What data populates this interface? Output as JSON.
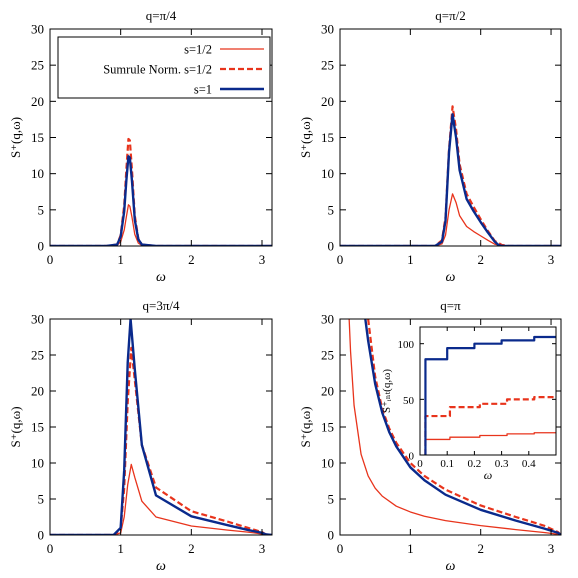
{
  "chart_data": [
    {
      "type": "line",
      "title": "q=π/4",
      "xlabel": "ω",
      "ylabel": "S⁺(q,ω)",
      "xlim": [
        0,
        3.14159
      ],
      "ylim": [
        0,
        30
      ],
      "xticks": [
        "0",
        "1",
        "2",
        "3"
      ],
      "xtick_values": [
        0,
        1,
        2,
        3
      ],
      "yticks": [
        "0",
        "5",
        "10",
        "15",
        "20",
        "25",
        "30"
      ],
      "ytick_values": [
        0,
        5,
        10,
        15,
        20,
        25,
        30
      ],
      "legend": {
        "placement": "top-right",
        "entries": [
          "s=1/2",
          "Sumrule Norm. s=1/2",
          "s=1"
        ]
      },
      "series": [
        {
          "name": "s=1/2",
          "color": "#e8341c",
          "dash": "solid",
          "x": [
            0,
            0.8,
            0.95,
            1.0,
            1.05,
            1.08,
            1.11,
            1.13,
            1.16,
            1.2,
            1.25,
            1.3,
            1.5,
            2.0,
            3.14
          ],
          "y": [
            0,
            0,
            0.1,
            0.6,
            2.2,
            4.0,
            5.7,
            5.5,
            4.0,
            1.6,
            0.4,
            0.08,
            0,
            0,
            0
          ]
        },
        {
          "name": "Sumrule Norm. s=1/2",
          "color": "#e8341c",
          "dash": "dashed",
          "x": [
            0,
            0.8,
            0.95,
            1.0,
            1.05,
            1.08,
            1.11,
            1.13,
            1.16,
            1.2,
            1.25,
            1.3,
            1.5,
            2.0,
            3.14
          ],
          "y": [
            0,
            0,
            0.2,
            1.5,
            5.6,
            10.5,
            14.8,
            14.6,
            10.5,
            4.2,
            1.0,
            0.2,
            0,
            0,
            0
          ]
        },
        {
          "name": "s=1",
          "color": "#0a2a8c",
          "dash": "solid",
          "x": [
            0,
            0.8,
            0.95,
            1.0,
            1.05,
            1.08,
            1.11,
            1.13,
            1.16,
            1.2,
            1.25,
            1.3,
            1.5,
            2.0,
            3.14
          ],
          "y": [
            0,
            0,
            0.2,
            1.3,
            4.8,
            9.0,
            12.4,
            12.2,
            9.0,
            3.6,
            0.9,
            0.2,
            0,
            0,
            0
          ]
        }
      ]
    },
    {
      "type": "line",
      "title": "q=π/2",
      "xlabel": "ω",
      "ylabel": "S⁺(q,ω)",
      "xlim": [
        0,
        3.14159
      ],
      "ylim": [
        0,
        30
      ],
      "xticks": [
        "0",
        "1",
        "2",
        "3"
      ],
      "xtick_values": [
        0,
        1,
        2,
        3
      ],
      "yticks": [
        "0",
        "5",
        "10",
        "15",
        "20",
        "25",
        "30"
      ],
      "ytick_values": [
        0,
        5,
        10,
        15,
        20,
        25,
        30
      ],
      "series": [
        {
          "name": "s=1/2",
          "color": "#e8341c",
          "dash": "solid",
          "x": [
            0,
            1.35,
            1.45,
            1.5,
            1.55,
            1.6,
            1.65,
            1.7,
            1.8,
            1.9,
            2.0,
            2.1,
            2.2,
            2.3,
            2.4,
            3.14
          ],
          "y": [
            0,
            0,
            0.3,
            1.5,
            5.0,
            7.2,
            6.0,
            4.2,
            2.7,
            2.0,
            1.4,
            0.8,
            0.25,
            0.05,
            0,
            0
          ]
        },
        {
          "name": "Sumrule Norm. s=1/2",
          "color": "#e8341c",
          "dash": "dashed",
          "x": [
            0,
            1.35,
            1.45,
            1.5,
            1.55,
            1.6,
            1.65,
            1.7,
            1.8,
            1.9,
            2.0,
            2.1,
            2.2,
            2.3,
            2.4,
            3.14
          ],
          "y": [
            0,
            0,
            0.8,
            4.0,
            13.4,
            19.3,
            16.1,
            11.3,
            7.2,
            5.4,
            3.7,
            2.1,
            0.7,
            0.15,
            0,
            0
          ]
        },
        {
          "name": "s=1",
          "color": "#0a2a8c",
          "dash": "solid",
          "x": [
            0,
            1.35,
            1.45,
            1.5,
            1.55,
            1.6,
            1.65,
            1.7,
            1.8,
            1.9,
            2.0,
            2.1,
            2.2,
            2.25,
            2.3,
            3.14
          ],
          "y": [
            0,
            0,
            0.6,
            3.5,
            13.0,
            18.2,
            15.0,
            10.5,
            6.5,
            4.8,
            3.3,
            1.9,
            0.6,
            0.15,
            0,
            0
          ]
        }
      ]
    },
    {
      "type": "line",
      "title": "q=3π/4",
      "xlabel": "ω",
      "ylabel": "S⁺(q,ω)",
      "xlim": [
        0,
        3.14159
      ],
      "ylim": [
        0,
        30
      ],
      "xticks": [
        "0",
        "1",
        "2",
        "3"
      ],
      "xtick_values": [
        0,
        1,
        2,
        3
      ],
      "yticks": [
        "0",
        "5",
        "10",
        "15",
        "20",
        "25",
        "30"
      ],
      "ytick_values": [
        0,
        5,
        10,
        15,
        20,
        25,
        30
      ],
      "series": [
        {
          "name": "s=1/2",
          "color": "#e8341c",
          "dash": "solid",
          "x": [
            0,
            0.9,
            1.0,
            1.05,
            1.1,
            1.15,
            1.2,
            1.3,
            1.5,
            2.0,
            2.5,
            2.8,
            3.0,
            3.05,
            3.14
          ],
          "y": [
            0,
            0,
            0.3,
            2.5,
            7.0,
            9.8,
            8.0,
            4.7,
            2.5,
            1.25,
            0.7,
            0.4,
            0.15,
            0.05,
            0
          ]
        },
        {
          "name": "Sumrule Norm. s=1/2",
          "color": "#e8341c",
          "dash": "dashed",
          "x": [
            0,
            0.9,
            1.0,
            1.05,
            1.1,
            1.15,
            1.2,
            1.3,
            1.5,
            2.0,
            2.5,
            2.8,
            3.0,
            3.05,
            3.14
          ],
          "y": [
            0,
            0,
            0.8,
            6.5,
            18.5,
            26.0,
            21.5,
            12.5,
            6.6,
            3.3,
            1.9,
            1.0,
            0.4,
            0.1,
            0
          ]
        },
        {
          "name": "s=1",
          "color": "#0a2a8c",
          "dash": "solid",
          "x": [
            0,
            0.9,
            1.0,
            1.05,
            1.1,
            1.14,
            1.2,
            1.3,
            1.5,
            2.0,
            2.5,
            2.8,
            3.0,
            3.05,
            3.14
          ],
          "y": [
            0,
            0,
            1.0,
            9.0,
            24.0,
            30.0,
            23.0,
            12.5,
            5.5,
            2.6,
            1.4,
            0.7,
            0.3,
            0.1,
            0
          ]
        }
      ]
    },
    {
      "type": "line",
      "title": "q=π",
      "xlabel": "ω",
      "ylabel": "S⁺(q,ω)",
      "xlim": [
        0,
        3.14159
      ],
      "ylim": [
        0,
        30
      ],
      "xticks": [
        "0",
        "1",
        "2",
        "3"
      ],
      "xtick_values": [
        0,
        1,
        2,
        3
      ],
      "yticks": [
        "0",
        "5",
        "10",
        "15",
        "20",
        "25",
        "30"
      ],
      "ytick_values": [
        0,
        5,
        10,
        15,
        20,
        25,
        30
      ],
      "series": [
        {
          "name": "s=1/2",
          "color": "#e8341c",
          "dash": "solid",
          "x": [
            0.13,
            0.15,
            0.2,
            0.3,
            0.4,
            0.5,
            0.6,
            0.8,
            1.0,
            1.2,
            1.5,
            2.0,
            2.5,
            2.9,
            3.1,
            3.14
          ],
          "y": [
            30,
            25.5,
            18.0,
            11.2,
            8.2,
            6.5,
            5.4,
            4.0,
            3.2,
            2.6,
            2.0,
            1.3,
            0.75,
            0.35,
            0.1,
            0
          ]
        },
        {
          "name": "Sumrule Norm. s=1/2",
          "color": "#e8341c",
          "dash": "dashed",
          "x": [
            0.4,
            0.5,
            0.6,
            0.7,
            0.8,
            1.0,
            1.2,
            1.5,
            2.0,
            2.5,
            2.9,
            3.1,
            3.14
          ],
          "y": [
            30,
            22.0,
            17.5,
            14.8,
            12.8,
            10.0,
            8.2,
            6.3,
            4.1,
            2.5,
            1.3,
            0.4,
            0
          ]
        },
        {
          "name": "s=1",
          "color": "#0a2a8c",
          "dash": "solid",
          "x": [
            0.36,
            0.4,
            0.5,
            0.6,
            0.7,
            0.8,
            1.0,
            1.2,
            1.5,
            2.0,
            2.5,
            2.9,
            3.1,
            3.14
          ],
          "y": [
            30,
            27.0,
            21.0,
            17.0,
            14.3,
            12.3,
            9.4,
            7.6,
            5.6,
            3.5,
            2.0,
            0.9,
            0.3,
            0
          ]
        }
      ]
    },
    {
      "type": "line",
      "title": "",
      "xlabel": "ω",
      "ylabel": "S⁺ᵢₙₜ(q,ω)",
      "xlim": [
        0,
        0.5
      ],
      "ylim": [
        0,
        115
      ],
      "xticks": [
        "0",
        "0.1",
        "0.2",
        "0.3",
        "0.4"
      ],
      "xtick_values": [
        0,
        0.1,
        0.2,
        0.3,
        0.4
      ],
      "yticks": [
        "0",
        "50",
        "100"
      ],
      "ytick_values": [
        0,
        50,
        100
      ],
      "series": [
        {
          "name": "s=1/2",
          "color": "#e8341c",
          "dash": "solid",
          "x": [
            0.02,
            0.02,
            0.11,
            0.11,
            0.22,
            0.22,
            0.32,
            0.32,
            0.42,
            0.42,
            0.5
          ],
          "y": [
            0,
            14,
            14,
            16,
            16,
            17.5,
            17.5,
            19,
            19,
            20,
            20
          ]
        },
        {
          "name": "Sumrule Norm. s=1/2",
          "color": "#e8341c",
          "dash": "dashed",
          "x": [
            0.02,
            0.02,
            0.11,
            0.11,
            0.22,
            0.22,
            0.32,
            0.32,
            0.42,
            0.42,
            0.5
          ],
          "y": [
            0,
            35,
            35,
            43,
            43,
            46,
            46,
            50,
            50,
            52,
            52
          ]
        },
        {
          "name": "s=1",
          "color": "#0a2a8c",
          "dash": "solid",
          "x": [
            0.02,
            0.02,
            0.1,
            0.1,
            0.2,
            0.2,
            0.3,
            0.3,
            0.42,
            0.42,
            0.5
          ],
          "y": [
            0,
            86,
            86,
            96,
            96,
            100,
            100,
            103,
            103,
            106,
            106
          ]
        }
      ]
    }
  ]
}
